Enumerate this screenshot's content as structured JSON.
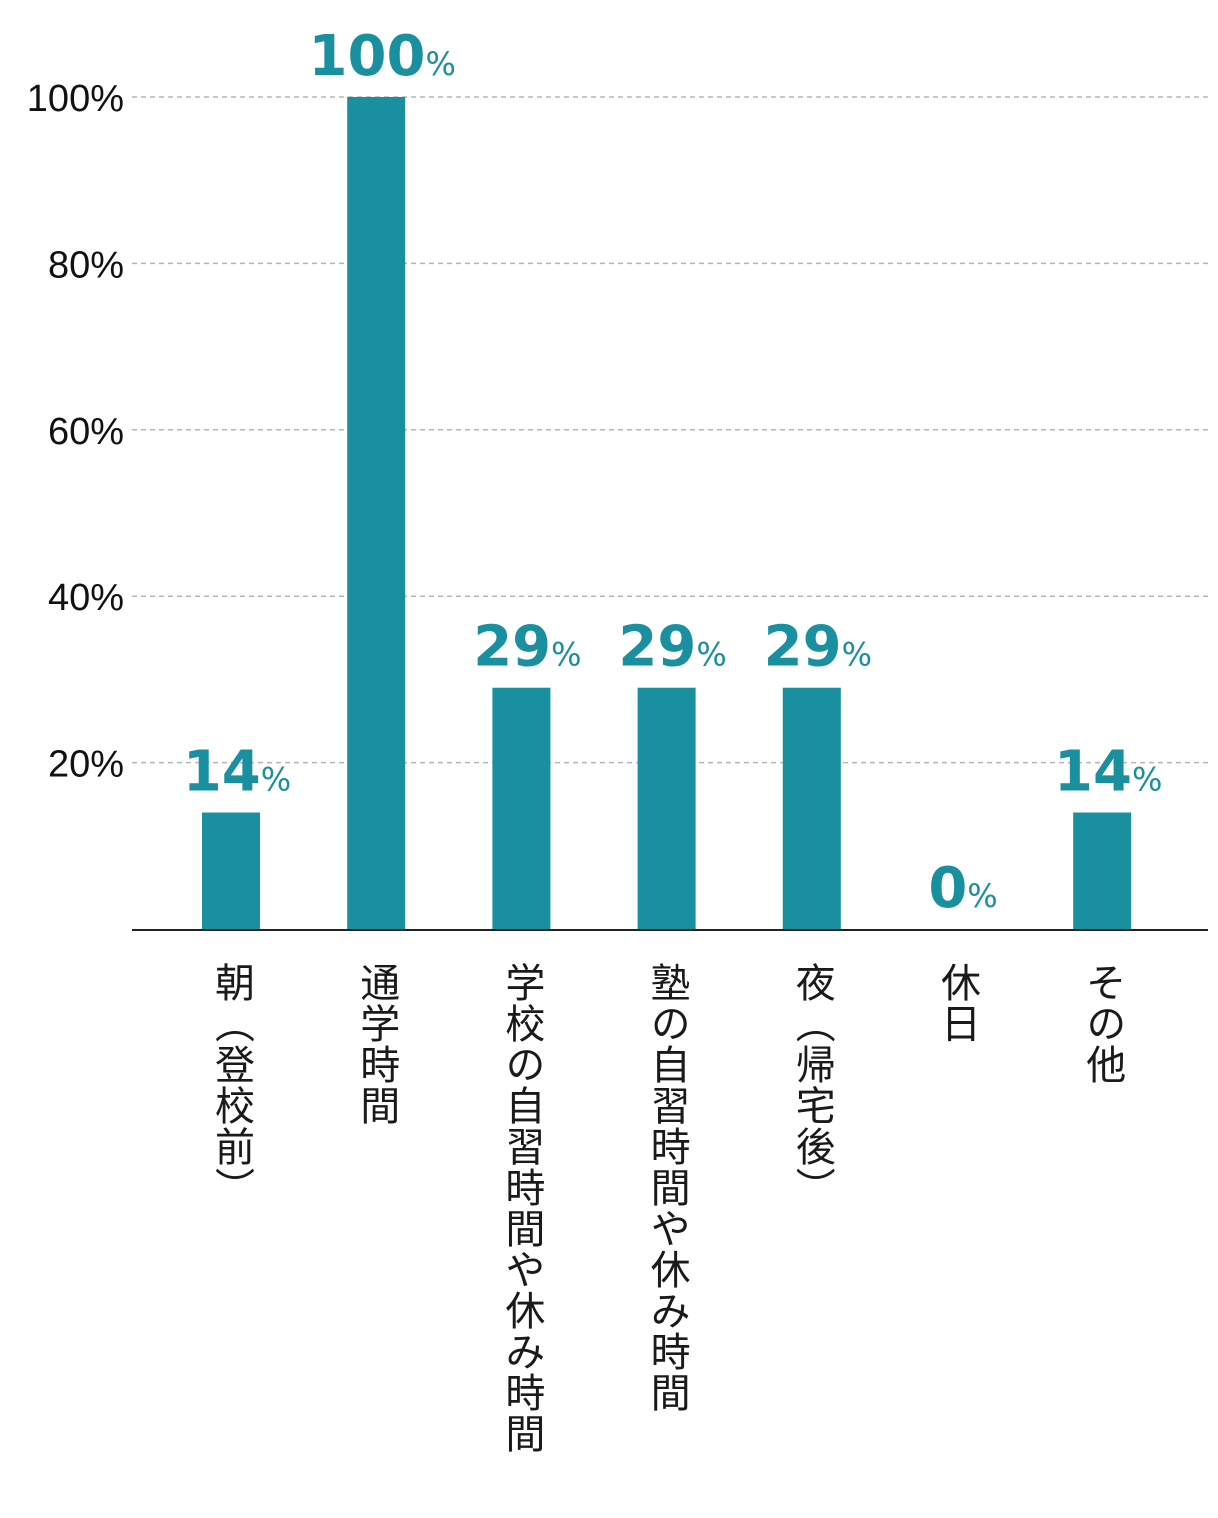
{
  "chart_data": {
    "type": "bar",
    "categories": [
      "朝（登校前）",
      "通学時間",
      "学校の自習時間や休み時間",
      "塾の自習時間や休み時間",
      "夜（帰宅後）",
      "休日",
      "その他"
    ],
    "values": [
      14,
      100,
      29,
      29,
      29,
      0,
      14
    ],
    "value_labels": [
      "14",
      "100",
      "29",
      "29",
      "29",
      "0",
      "14"
    ],
    "value_unit": "%",
    "y_ticks": [
      "20%",
      "40%",
      "60%",
      "80%",
      "100%"
    ],
    "y_tick_values": [
      20,
      40,
      60,
      80,
      100
    ],
    "ylim": [
      0,
      100
    ],
    "grid": true,
    "legend": "none",
    "bar_color": "#1a8fa0",
    "label_color": "#1a8fa0",
    "grid_color": "#b5b5b5",
    "axis_color": "#222222"
  }
}
